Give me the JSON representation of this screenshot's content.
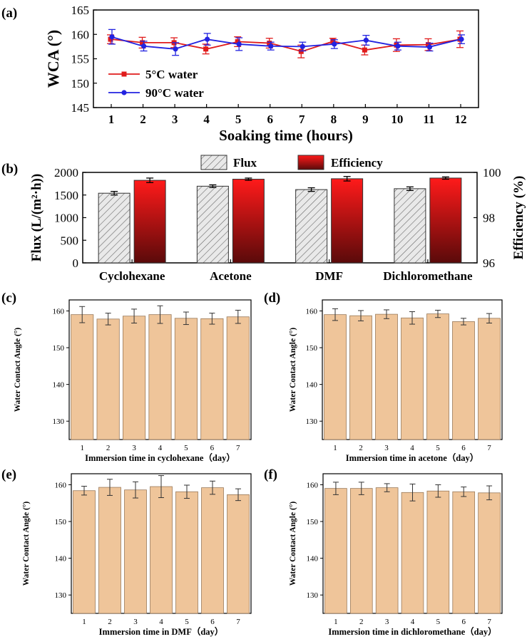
{
  "panel_labels": [
    "(a)",
    "(b)",
    "(c)",
    "(d)",
    "(e)",
    "(f)"
  ],
  "colors": {
    "red": "#e01b1b",
    "blue": "#2323e0",
    "efficiency_top": "#ff1a1a",
    "efficiency_bottom": "#5a0a0a",
    "flux_fill": "#e9e9e9",
    "wca_bar": "#efc59a",
    "wca_bar_stroke": "#9a7a5a"
  },
  "chart_data": [
    {
      "panel": "a",
      "type": "line",
      "xlabel": "Soaking time (hours)",
      "ylabel": "WCA (°)",
      "x": [
        1,
        2,
        3,
        4,
        5,
        6,
        7,
        8,
        9,
        10,
        11,
        12
      ],
      "ylim": [
        145,
        165
      ],
      "yticks": [
        145,
        150,
        155,
        160,
        165
      ],
      "legend_position": "lower-left",
      "series": [
        {
          "name": "5°C water",
          "color": "#e01b1b",
          "values": [
            159.0,
            158.3,
            158.3,
            157.0,
            158.5,
            158.2,
            156.5,
            158.6,
            156.8,
            157.8,
            157.9,
            159.0
          ],
          "errors": [
            0.9,
            1.1,
            1.0,
            1.0,
            1.0,
            1.0,
            1.3,
            0.6,
            1.0,
            1.3,
            1.2,
            1.7
          ]
        },
        {
          "name": "90°C water",
          "color": "#2323e0",
          "values": [
            159.5,
            157.6,
            157.0,
            159.0,
            158.0,
            157.6,
            157.5,
            158.0,
            158.8,
            157.6,
            157.4,
            159.0
          ],
          "errors": [
            1.5,
            1.0,
            1.3,
            1.2,
            1.3,
            0.8,
            0.9,
            0.9,
            1.0,
            0.8,
            0.8,
            0.9
          ]
        }
      ]
    },
    {
      "panel": "b",
      "type": "bar",
      "categories": [
        "Cyclohexane",
        "Acetone",
        "DMF",
        "Dichloromethane"
      ],
      "ylabel": "Flux (L/(m²·h))",
      "ylabel2": "Efficiency (%)",
      "ylim": [
        0,
        2000
      ],
      "yticks": [
        0,
        500,
        1000,
        1500,
        2000
      ],
      "ylim2": [
        96,
        100
      ],
      "yticks2": [
        96,
        98,
        100
      ],
      "series": [
        {
          "name": "Flux",
          "axis": "left",
          "values": [
            1540,
            1695,
            1620,
            1640
          ],
          "errors": [
            40,
            30,
            40,
            40
          ]
        },
        {
          "name": "Efficiency",
          "axis": "right",
          "values": [
            99.65,
            99.7,
            99.72,
            99.75
          ],
          "errors": [
            0.1,
            0.05,
            0.1,
            0.05
          ]
        }
      ]
    },
    {
      "panel": "c",
      "type": "bar",
      "xlabel": "Immersion time in cyclohexane（day）",
      "ylabel": "Water Contact Angle (°)",
      "categories": [
        "1",
        "2",
        "3",
        "4",
        "5",
        "6",
        "7"
      ],
      "ylim": [
        125,
        163
      ],
      "yticks": [
        130,
        140,
        150,
        160
      ],
      "values": [
        159.0,
        157.8,
        158.6,
        159.0,
        158.0,
        157.9,
        158.4
      ],
      "errors": [
        2.2,
        1.6,
        1.9,
        2.4,
        1.7,
        1.5,
        1.8
      ]
    },
    {
      "panel": "d",
      "type": "bar",
      "xlabel": "Immersion time in acetone（day）",
      "ylabel": "Water Contact Angle (°)",
      "categories": [
        "1",
        "2",
        "3",
        "4",
        "5",
        "6",
        "7"
      ],
      "ylim": [
        125,
        163
      ],
      "yticks": [
        130,
        140,
        150,
        160
      ],
      "values": [
        159.0,
        158.7,
        159.1,
        158.1,
        159.2,
        157.1,
        158.0
      ],
      "errors": [
        1.6,
        1.4,
        1.2,
        1.7,
        1.0,
        0.9,
        1.3
      ]
    },
    {
      "panel": "e",
      "type": "bar",
      "xlabel": "Immersion time in DMF（day）",
      "ylabel": "Water Contact Angle (°)",
      "categories": [
        "1",
        "2",
        "3",
        "4",
        "5",
        "6",
        "7"
      ],
      "ylim": [
        125,
        163
      ],
      "yticks": [
        130,
        140,
        150,
        160
      ],
      "values": [
        158.4,
        159.3,
        158.6,
        159.5,
        158.1,
        159.2,
        157.3
      ],
      "errors": [
        1.2,
        2.2,
        2.2,
        3.0,
        1.8,
        1.8,
        1.6
      ]
    },
    {
      "panel": "f",
      "type": "bar",
      "xlabel": "Immersion time in dichloromethane（day）",
      "ylabel": "Water Contact Angle (°)",
      "categories": [
        "1",
        "2",
        "3",
        "4",
        "5",
        "6",
        "7"
      ],
      "ylim": [
        125,
        163
      ],
      "yticks": [
        130,
        140,
        150,
        160
      ],
      "values": [
        159.0,
        159.0,
        159.2,
        157.9,
        158.3,
        158.1,
        157.8
      ],
      "errors": [
        1.7,
        1.7,
        1.1,
        2.3,
        1.7,
        1.3,
        1.9
      ]
    }
  ]
}
